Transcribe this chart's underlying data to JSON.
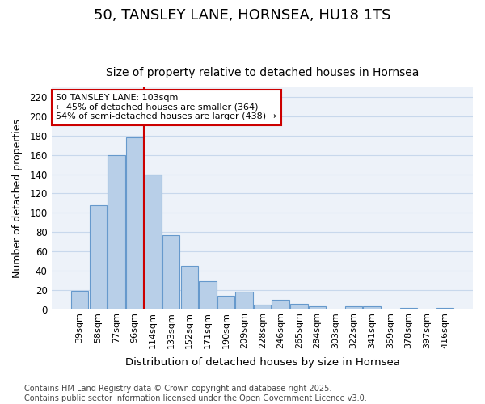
{
  "title": "50, TANSLEY LANE, HORNSEA, HU18 1TS",
  "subtitle": "Size of property relative to detached houses in Hornsea",
  "xlabel": "Distribution of detached houses by size in Hornsea",
  "ylabel": "Number of detached properties",
  "categories": [
    "39sqm",
    "58sqm",
    "77sqm",
    "96sqm",
    "114sqm",
    "133sqm",
    "152sqm",
    "171sqm",
    "190sqm",
    "209sqm",
    "228sqm",
    "246sqm",
    "265sqm",
    "284sqm",
    "303sqm",
    "322sqm",
    "341sqm",
    "359sqm",
    "378sqm",
    "397sqm",
    "416sqm"
  ],
  "values": [
    19,
    108,
    160,
    178,
    140,
    77,
    45,
    29,
    14,
    18,
    5,
    10,
    6,
    3,
    0,
    3,
    3,
    0,
    2,
    0,
    2
  ],
  "bar_color": "#b8cfe8",
  "bar_edge_color": "#6699cc",
  "figure_bg": "#ffffff",
  "axes_bg": "#edf2f9",
  "grid_color": "#c8d8ec",
  "red_line_x": 3.5,
  "annotation_text": "50 TANSLEY LANE: 103sqm\n← 45% of detached houses are smaller (364)\n54% of semi-detached houses are larger (438) →",
  "annotation_box_color": "#ffffff",
  "annotation_box_edge": "#cc0000",
  "footnote": "Contains HM Land Registry data © Crown copyright and database right 2025.\nContains public sector information licensed under the Open Government Licence v3.0.",
  "ylim": [
    0,
    230
  ],
  "yticks": [
    0,
    20,
    40,
    60,
    80,
    100,
    120,
    140,
    160,
    180,
    200,
    220
  ],
  "title_fontsize": 13,
  "subtitle_fontsize": 10,
  "ylabel_fontsize": 9,
  "xlabel_fontsize": 9.5,
  "footnote_fontsize": 7,
  "tick_fontsize": 8.5,
  "xtick_fontsize": 8
}
